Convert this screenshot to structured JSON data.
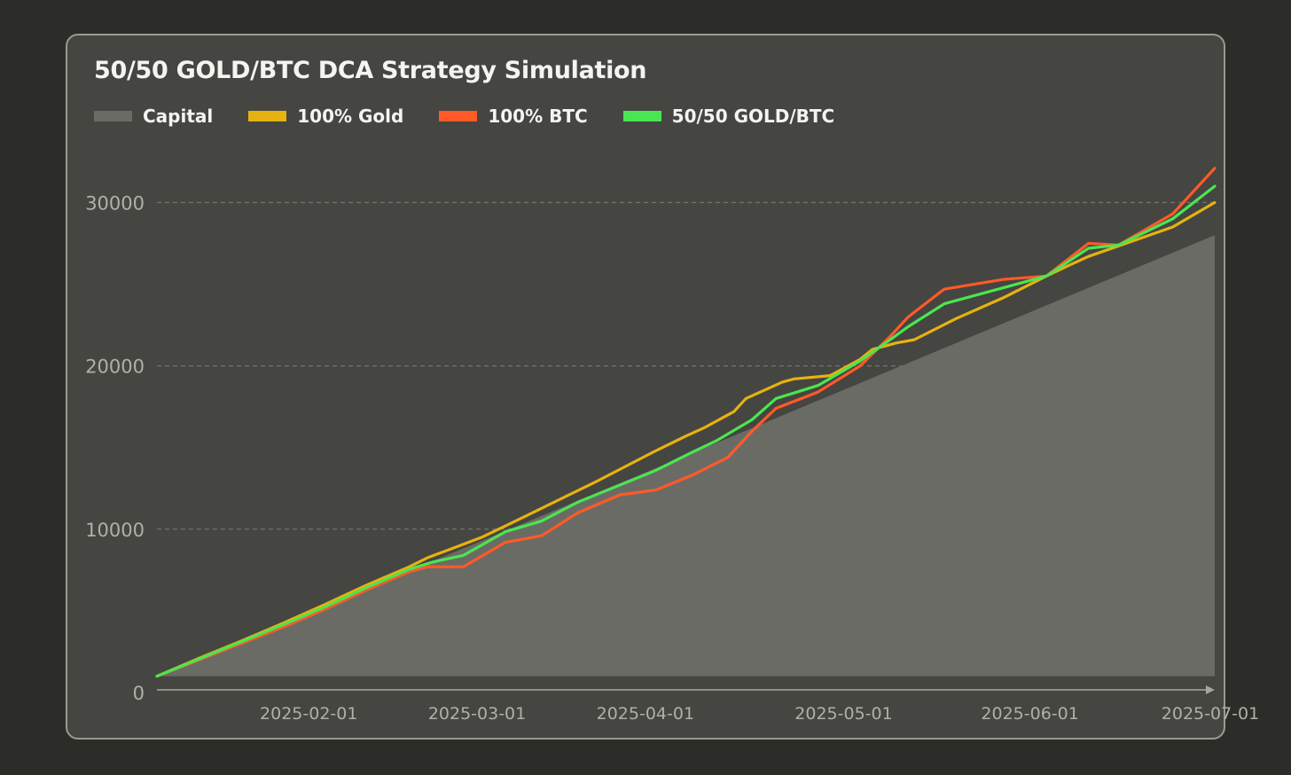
{
  "colors": {
    "page_bg": "#2c2c28",
    "card_bg": "#454541",
    "card_border": "#9a9a95",
    "grid": "#8a8a85",
    "axis": "#a6a6a1",
    "tick_text": "#b0b0ab",
    "capital": "#6b6b66",
    "gold": "#e6b210",
    "btc": "#ff5a28",
    "mix": "#4ae651"
  },
  "chart_data": {
    "type": "line",
    "title": "50/50 GOLD/BTC DCA Strategy Simulation",
    "xlabel": "",
    "ylabel": "",
    "x_start": "2025-01-06",
    "x_end": "2025-07-01",
    "xlim_days": [
      0,
      176
    ],
    "ylim": [
      0,
      33000
    ],
    "y_ticks": [
      {
        "value": 0,
        "label": "0"
      },
      {
        "value": 10000,
        "label": "10000"
      },
      {
        "value": 20000,
        "label": "20000"
      },
      {
        "value": 30000,
        "label": "30000"
      }
    ],
    "x_ticks": [
      {
        "day": 26,
        "label": "2025-02-01"
      },
      {
        "day": 54,
        "label": "2025-03-01"
      },
      {
        "day": 82,
        "label": "2025-04-01"
      },
      {
        "day": 115,
        "label": "2025-05-01"
      },
      {
        "day": 146,
        "label": "2025-06-01"
      },
      {
        "day": 176,
        "label": "2025-07-01"
      }
    ],
    "grid": "horizontal dashed",
    "legend_position": "top-left",
    "series": [
      {
        "name": "Capital",
        "kind": "area",
        "color_key": "capital",
        "points": [
          [
            0,
            1000
          ],
          [
            176,
            28000
          ]
        ]
      },
      {
        "name": "100% Gold",
        "kind": "line",
        "color_key": "gold",
        "points": [
          [
            0,
            1000
          ],
          [
            7,
            2100
          ],
          [
            14,
            3150
          ],
          [
            21,
            4250
          ],
          [
            28,
            5400
          ],
          [
            35,
            6600
          ],
          [
            42,
            7700
          ],
          [
            45,
            8250
          ],
          [
            49,
            8800
          ],
          [
            54,
            9500
          ],
          [
            58,
            10200
          ],
          [
            63,
            11100
          ],
          [
            68,
            12000
          ],
          [
            73,
            12900
          ],
          [
            78,
            13850
          ],
          [
            83,
            14800
          ],
          [
            88,
            15700
          ],
          [
            91,
            16200
          ],
          [
            96,
            17200
          ],
          [
            98,
            18000
          ],
          [
            104,
            19000
          ],
          [
            106,
            19200
          ],
          [
            112,
            19400
          ],
          [
            117,
            20400
          ],
          [
            119,
            21000
          ],
          [
            123,
            21400
          ],
          [
            126,
            21600
          ],
          [
            133,
            22900
          ],
          [
            141,
            24200
          ],
          [
            148,
            25500
          ],
          [
            152,
            26200
          ],
          [
            155,
            26700
          ],
          [
            162,
            27600
          ],
          [
            169,
            28500
          ],
          [
            176,
            30000
          ]
        ]
      },
      {
        "name": "100% BTC",
        "kind": "line",
        "color_key": "btc",
        "points": [
          [
            0,
            1000
          ],
          [
            7,
            2000
          ],
          [
            14,
            3000
          ],
          [
            21,
            4000
          ],
          [
            28,
            5100
          ],
          [
            35,
            6300
          ],
          [
            42,
            7400
          ],
          [
            45,
            7700
          ],
          [
            51,
            7700
          ],
          [
            58,
            9200
          ],
          [
            64,
            9600
          ],
          [
            70,
            11000
          ],
          [
            77,
            12100
          ],
          [
            83,
            12400
          ],
          [
            89,
            13300
          ],
          [
            95,
            14400
          ],
          [
            99,
            16000
          ],
          [
            103,
            17400
          ],
          [
            110,
            18400
          ],
          [
            117,
            20000
          ],
          [
            122,
            21800
          ],
          [
            125,
            23000
          ],
          [
            131,
            24700
          ],
          [
            141,
            25300
          ],
          [
            148,
            25500
          ],
          [
            155,
            27500
          ],
          [
            160,
            27400
          ],
          [
            169,
            29300
          ],
          [
            176,
            32100
          ]
        ]
      },
      {
        "name": "50/50 GOLD/BTC",
        "kind": "line",
        "color_key": "mix",
        "points": [
          [
            0,
            1000
          ],
          [
            7,
            2050
          ],
          [
            14,
            3100
          ],
          [
            21,
            4150
          ],
          [
            28,
            5250
          ],
          [
            35,
            6450
          ],
          [
            42,
            7550
          ],
          [
            46,
            8000
          ],
          [
            51,
            8400
          ],
          [
            58,
            9850
          ],
          [
            64,
            10500
          ],
          [
            70,
            11650
          ],
          [
            77,
            12700
          ],
          [
            83,
            13600
          ],
          [
            89,
            14700
          ],
          [
            93,
            15400
          ],
          [
            99,
            16700
          ],
          [
            103,
            18000
          ],
          [
            110,
            18800
          ],
          [
            117,
            20300
          ],
          [
            122,
            21600
          ],
          [
            125,
            22400
          ],
          [
            131,
            23800
          ],
          [
            141,
            24800
          ],
          [
            148,
            25500
          ],
          [
            155,
            27200
          ],
          [
            160,
            27400
          ],
          [
            169,
            29000
          ],
          [
            176,
            31000
          ]
        ]
      }
    ]
  }
}
